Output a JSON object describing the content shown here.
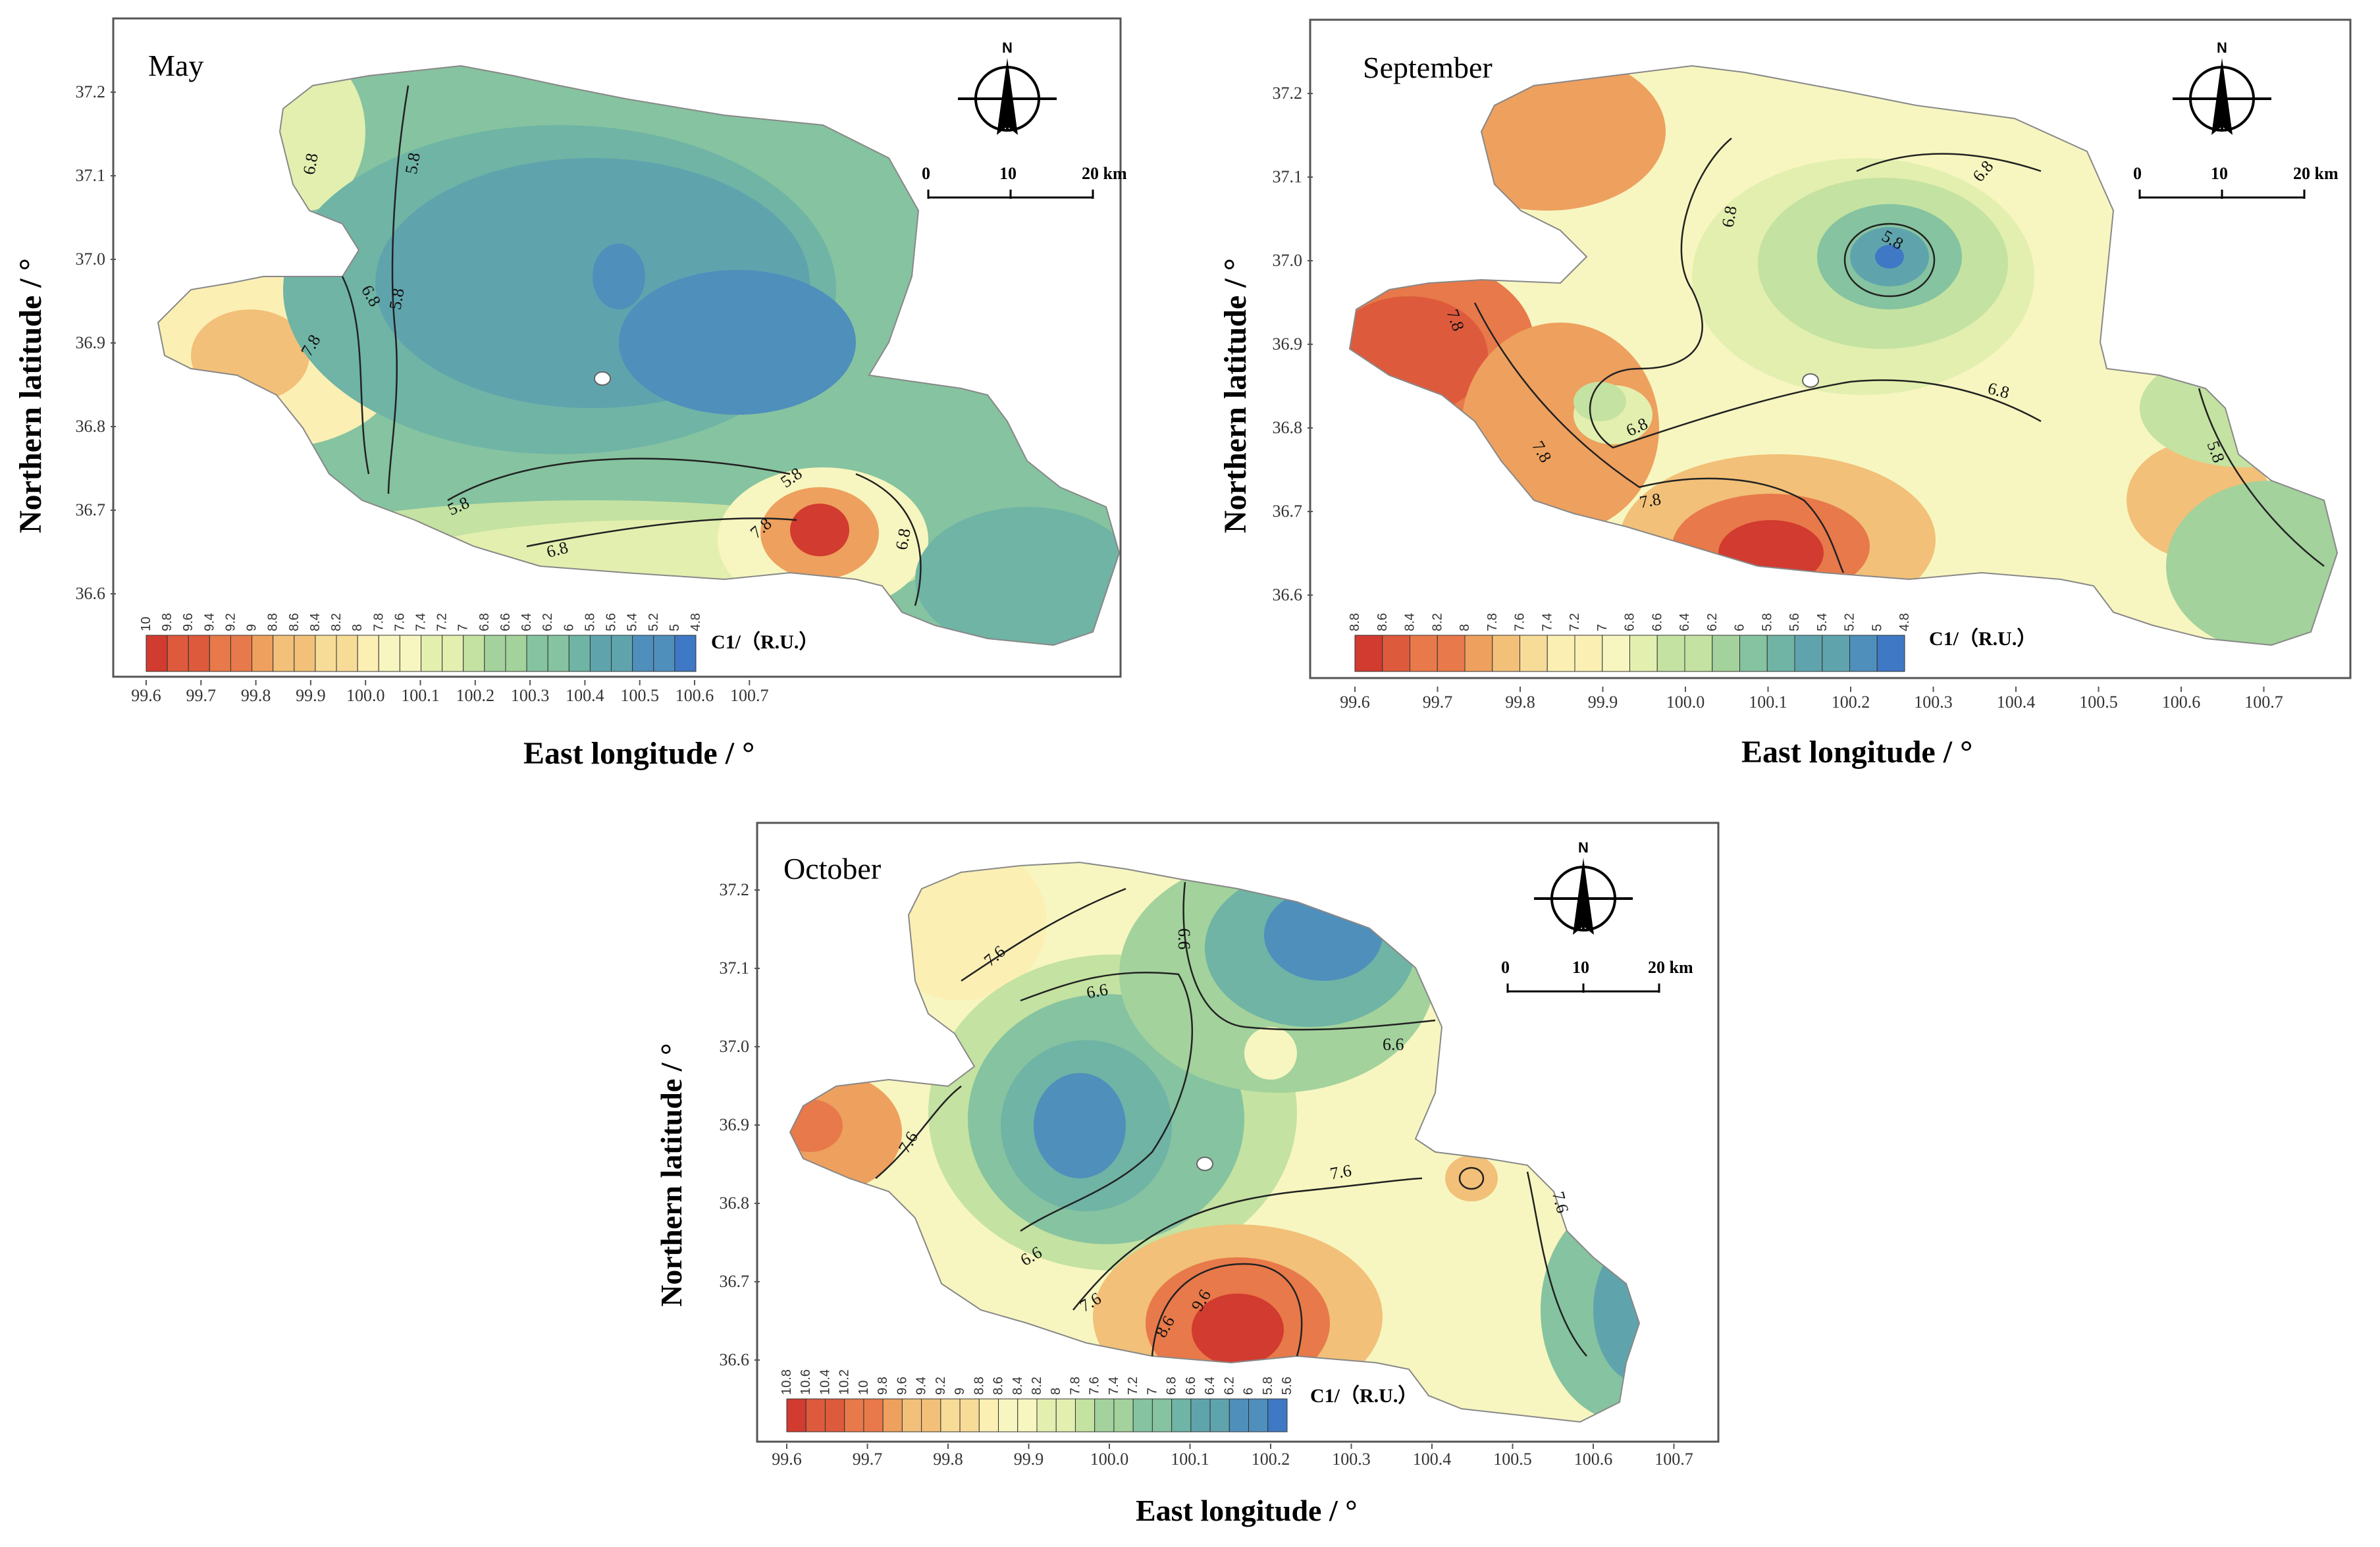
{
  "colors": {
    "ramp": [
      "#d23b2f",
      "#de5a3c",
      "#e8794a",
      "#eea05e",
      "#f2c078",
      "#f7dc98",
      "#fbefb4",
      "#f7f6c0",
      "#e3efaf",
      "#c4e2a1",
      "#a3d29c",
      "#86c3a0",
      "#6fb4a5",
      "#5fa4ad",
      "#4f8fbc",
      "#3f78c4"
    ],
    "frame": "#555555",
    "contour": "#222222",
    "mask": "#ffffff"
  },
  "axis_labels": {
    "x": "East longitude / °",
    "y": "Northern latitude / °"
  },
  "scale_bar": {
    "labels": [
      "0",
      "10",
      "20 km"
    ]
  },
  "north_arrow": {
    "label": "N"
  },
  "panels": [
    {
      "month": "May",
      "x_ticks": [
        "99.6",
        "99.7",
        "99.8",
        "99.9",
        "100.0",
        "100.1",
        "100.2",
        "100.3",
        "100.4",
        "100.5",
        "100.6",
        "100.7"
      ],
      "y_ticks": [
        "37.2",
        "37.1",
        "37.0",
        "36.9",
        "36.8",
        "36.7",
        "36.6"
      ],
      "legend": {
        "title": "C1/（R.U.）",
        "values": [
          "10",
          "9.8",
          "9.6",
          "9.4",
          "9.2",
          "9",
          "8.8",
          "8.6",
          "8.4",
          "8.2",
          "8",
          "7.8",
          "7.6",
          "7.4",
          "7.2",
          "7",
          "6.8",
          "6.6",
          "6.4",
          "6.2",
          "6",
          "5.8",
          "5.6",
          "5.4",
          "5.2",
          "5",
          "4.8"
        ]
      },
      "contour_labels": [
        "6.8",
        "5.8",
        "6.8",
        "5.8",
        "7.8",
        "5.8",
        "5.8",
        "6.8",
        "7.8",
        "6.8"
      ]
    },
    {
      "month": "September",
      "x_ticks": [
        "99.6",
        "99.7",
        "99.8",
        "99.9",
        "100.0",
        "100.1",
        "100.2",
        "100.3",
        "100.4",
        "100.5",
        "100.6",
        "100.7"
      ],
      "y_ticks": [
        "37.2",
        "37.1",
        "37.0",
        "36.9",
        "36.8",
        "36.7",
        "36.6"
      ],
      "legend": {
        "title": "C1/（R.U.）",
        "values": [
          "8.8",
          "8.6",
          "8.4",
          "8.2",
          "8",
          "7.8",
          "7.6",
          "7.4",
          "7.2",
          "7",
          "6.8",
          "6.6",
          "6.4",
          "6.2",
          "6",
          "5.8",
          "5.6",
          "5.4",
          "5.2",
          "5",
          "4.8"
        ]
      },
      "contour_labels": [
        "6.8",
        "6.8",
        "5.8",
        "7.8",
        "6.8",
        "6.8",
        "7.8",
        "7.8",
        "5.8"
      ]
    },
    {
      "month": "October",
      "x_ticks": [
        "99.6",
        "99.7",
        "99.8",
        "99.9",
        "100.0",
        "100.1",
        "100.2",
        "100.3",
        "100.4",
        "100.5",
        "100.6",
        "100.7"
      ],
      "y_ticks": [
        "37.2",
        "37.1",
        "37.0",
        "36.9",
        "36.8",
        "36.7",
        "36.6"
      ],
      "legend": {
        "title": "C1/（R.U.）",
        "values": [
          "10.8",
          "10.6",
          "10.4",
          "10.2",
          "10",
          "9.8",
          "9.6",
          "9.4",
          "9.2",
          "9",
          "8.8",
          "8.6",
          "8.4",
          "8.2",
          "8",
          "7.8",
          "7.6",
          "7.4",
          "7.2",
          "7",
          "6.8",
          "6.6",
          "6.4",
          "6.2",
          "6",
          "5.8",
          "5.6"
        ]
      },
      "contour_labels": [
        "7.6",
        "6.6",
        "6.6",
        "6.6",
        "7.6",
        "7.6",
        "6.6",
        "7.6",
        "8.6",
        "9.6",
        "7.6"
      ]
    }
  ]
}
